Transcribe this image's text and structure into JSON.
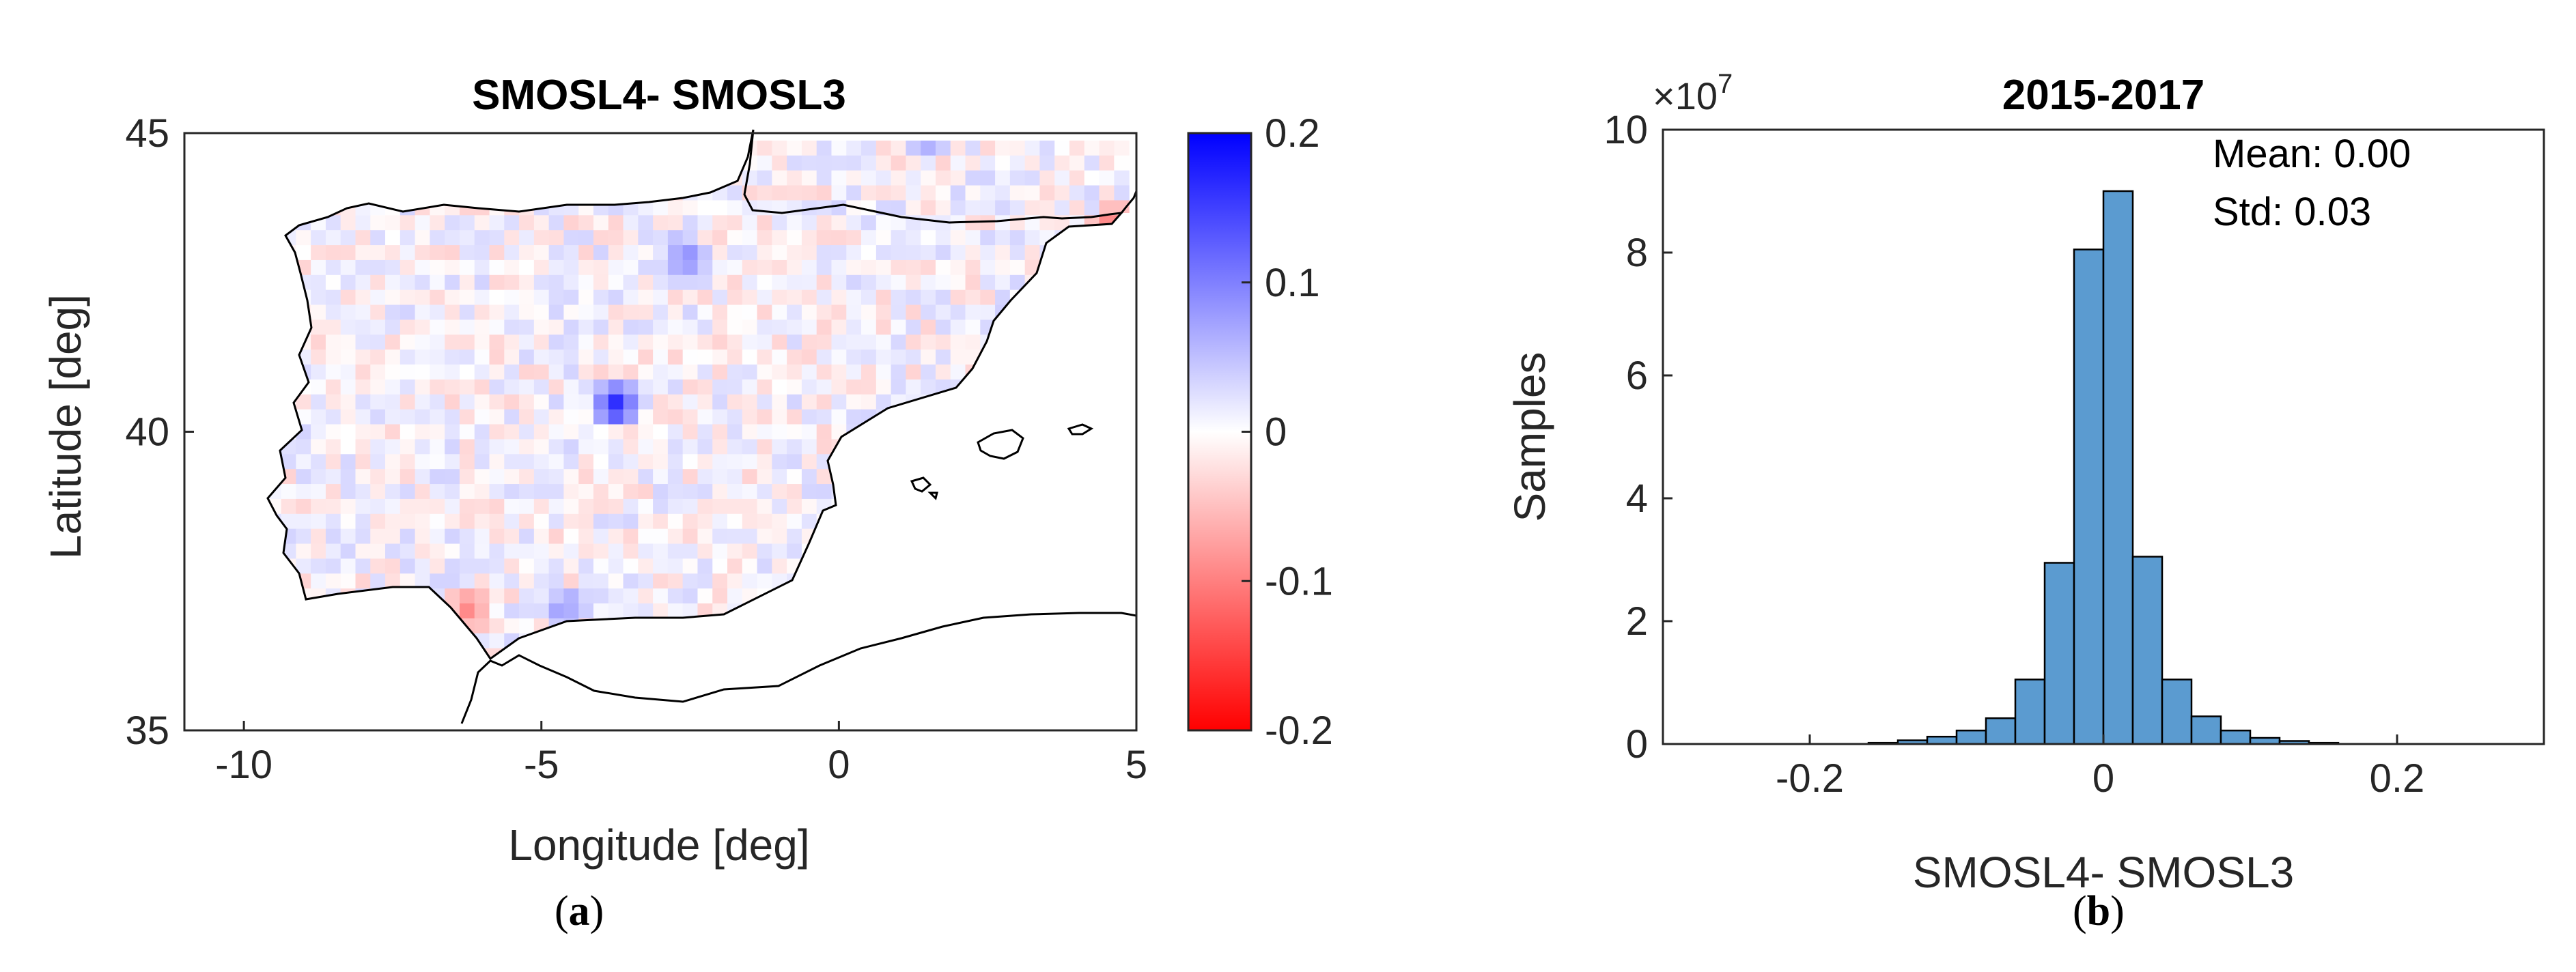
{
  "chart_data": [
    {
      "type": "heatmap",
      "panel_label": "(a)",
      "panel_letter": "a",
      "title": "SMOSL4- SMOSL3",
      "xlabel": "Longitude [deg]",
      "ylabel": "Latitude [deg]",
      "xlim": [
        -11,
        5
      ],
      "ylim": [
        35,
        45
      ],
      "xticks": [
        -10,
        -5,
        0,
        5
      ],
      "xtick_labels": [
        "-10",
        "-5",
        "0",
        "5"
      ],
      "yticks": [
        35,
        40,
        45
      ],
      "ytick_labels": [
        "35",
        "40",
        "45"
      ],
      "colorbar": {
        "range": [
          -0.2,
          0.2
        ],
        "ticks": [
          0.2,
          0.1,
          0,
          -0.1,
          -0.2
        ],
        "tick_labels": [
          "0.2",
          "0.1",
          "0",
          "-0.1",
          "-0.2"
        ],
        "colormap": [
          "#ff0000",
          "#ffffff",
          "#0000ff"
        ]
      },
      "highlights": [
        {
          "lon": -3.75,
          "lat": 40.45,
          "value": 0.18
        },
        {
          "lon": -2.6,
          "lat": 42.9,
          "value": 0.1
        },
        {
          "lon": -4.6,
          "lat": 37.05,
          "value": 0.09
        },
        {
          "lon": -6.2,
          "lat": 37.0,
          "value": -0.1
        },
        {
          "lon": 1.5,
          "lat": 44.9,
          "value": 0.08
        },
        {
          "lon": 4.6,
          "lat": 43.45,
          "value": -0.12
        },
        {
          "lon": 2.9,
          "lat": 41.7,
          "value": 0.07
        }
      ]
    },
    {
      "type": "bar",
      "panel_label": "(b)",
      "panel_letter": "b",
      "title": "2015-2017",
      "xlabel": "SMOSL4- SMOSL3",
      "ylabel": "Samples",
      "multiplier": "×10",
      "multiplier_exp": "7",
      "xlim": [
        -0.3,
        0.3
      ],
      "ylim": [
        0,
        10
      ],
      "xticks": [
        -0.2,
        0,
        0.2
      ],
      "xtick_labels": [
        "-0.2",
        "0",
        "0.2"
      ],
      "yticks": [
        0,
        2,
        4,
        6,
        8,
        10
      ],
      "ytick_labels": [
        "0",
        "2",
        "4",
        "6",
        "8",
        "10"
      ],
      "annotations": [
        "Mean: 0.00",
        "Std: 0.03"
      ],
      "bar_color": "#5b9bd0",
      "bin_edges": [
        -0.3,
        -0.28,
        -0.26,
        -0.24,
        -0.22,
        -0.2,
        -0.18,
        -0.16,
        -0.14,
        -0.12,
        -0.1,
        -0.08,
        -0.06,
        -0.04,
        -0.02,
        0,
        0.02,
        0.04,
        0.06,
        0.08,
        0.1,
        0.12,
        0.14,
        0.16,
        0.18,
        0.2,
        0.22,
        0.24,
        0.26,
        0.28,
        0.3
      ],
      "values": [
        0,
        0,
        0,
        0,
        0,
        0,
        0,
        0.02,
        0.06,
        0.12,
        0.22,
        0.42,
        1.05,
        2.95,
        8.05,
        9.0,
        3.05,
        1.05,
        0.45,
        0.22,
        0.1,
        0.05,
        0.02,
        0,
        0,
        0,
        0,
        0,
        0,
        0
      ]
    }
  ]
}
